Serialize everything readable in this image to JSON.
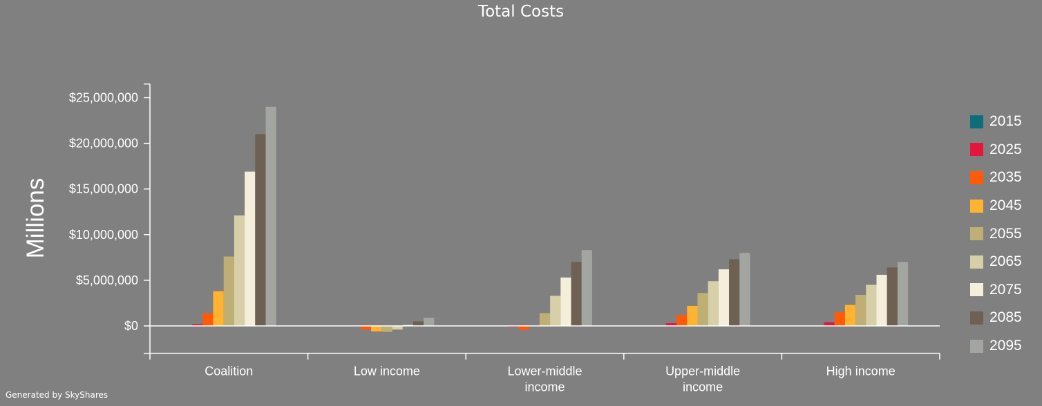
{
  "footer": "Generated by SkyShares",
  "chart_data": {
    "type": "bar",
    "title": "Total Costs",
    "ylabel": "Millions",
    "xlabel": "",
    "ylim": [
      -3000000,
      26500000
    ],
    "yticks": [
      0,
      5000000,
      10000000,
      15000000,
      20000000,
      25000000
    ],
    "ytick_labels": [
      "$0",
      "$5,000,000",
      "$10,000,000",
      "$15,000,000",
      "$20,000,000",
      "$25,000,000"
    ],
    "categories": [
      [
        "Coalition"
      ],
      [
        "Low income"
      ],
      [
        "Lower-middle",
        "income"
      ],
      [
        "Upper-middle",
        "income"
      ],
      [
        "High income"
      ]
    ],
    "legend_position": "right",
    "series": [
      {
        "name": "2015",
        "color": "#0b6e7a",
        "values": [
          0,
          0,
          0,
          0,
          0
        ]
      },
      {
        "name": "2025",
        "color": "#e3173e",
        "values": [
          200000,
          -50000,
          -100000,
          300000,
          400000
        ]
      },
      {
        "name": "2035",
        "color": "#ff5a08",
        "values": [
          1400000,
          -400000,
          -450000,
          1200000,
          1500000
        ]
      },
      {
        "name": "2045",
        "color": "#ffb330",
        "values": [
          3800000,
          -600000,
          0,
          2200000,
          2300000
        ]
      },
      {
        "name": "2055",
        "color": "#bfaf75",
        "values": [
          7600000,
          -650000,
          1400000,
          3600000,
          3400000
        ]
      },
      {
        "name": "2065",
        "color": "#d6cfa8",
        "values": [
          12100000,
          -400000,
          3300000,
          4900000,
          4500000
        ]
      },
      {
        "name": "2075",
        "color": "#f5eedb",
        "values": [
          16900000,
          100000,
          5300000,
          6200000,
          5600000
        ]
      },
      {
        "name": "2085",
        "color": "#6e6052",
        "values": [
          21000000,
          500000,
          7000000,
          7300000,
          6400000
        ]
      },
      {
        "name": "2095",
        "color": "#a3a6a0",
        "values": [
          24000000,
          900000,
          8300000,
          8000000,
          7000000
        ]
      }
    ]
  }
}
